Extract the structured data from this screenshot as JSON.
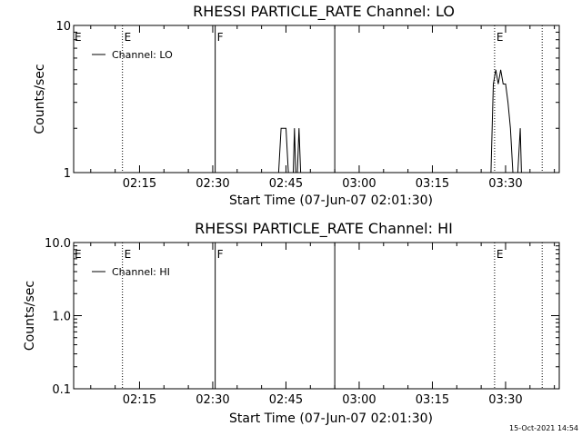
{
  "chart_data": [
    {
      "type": "line",
      "title": "RHESSI PARTICLE_RATE Channel: LO",
      "xlabel": "Start Time (07-Jun-07 02:01:30)",
      "ylabel": "Counts/sec",
      "yscale": "log",
      "ylim": [
        1,
        10
      ],
      "xlim": [
        "02:01:30",
        "03:41:00"
      ],
      "x_tick_labels": [
        "02:15",
        "02:30",
        "02:45",
        "03:00",
        "03:15",
        "03:30"
      ],
      "y_tick_labels": [
        "1",
        "10"
      ],
      "legend": {
        "entry": "Channel: LO",
        "position": "top-left"
      },
      "markers": [
        {
          "time": "02:11:30",
          "style": "dotted",
          "label": "E"
        },
        {
          "time": "02:30:30",
          "style": "solid",
          "label": "F"
        },
        {
          "time": "02:55:00",
          "style": "solid",
          "label": ""
        },
        {
          "time": "03:27:45",
          "style": "dotted",
          "label": "E"
        },
        {
          "time": "03:37:30",
          "style": "dotted",
          "label": ""
        }
      ],
      "series": [
        {
          "name": "Channel: LO",
          "x": [
            "02:43:30",
            "02:44:00",
            "02:44:30",
            "02:45:00",
            "02:45:30",
            "02:45:45",
            "02:46:15",
            "02:46:30",
            "02:46:45",
            "02:47:00",
            "02:47:20",
            "02:47:40",
            "02:48:00",
            "02:48:15",
            "02:48:30",
            "02:48:45",
            "02:49:00",
            "02:49:20",
            "03:27:00",
            "03:27:30",
            "03:28:00",
            "03:28:30",
            "03:29:00",
            "03:29:30",
            "03:30:00",
            "03:30:30",
            "03:31:00",
            "03:31:30",
            "03:32:00",
            "03:32:15",
            "03:32:30",
            "03:33:00",
            "03:33:15"
          ],
          "y": [
            1,
            2,
            2,
            2,
            1,
            1,
            1,
            1,
            2,
            1,
            1,
            2,
            1,
            1,
            1,
            1,
            1,
            1,
            1,
            4,
            5,
            4,
            5,
            4,
            4,
            3,
            2,
            1,
            1,
            1,
            1,
            2,
            1
          ]
        }
      ]
    },
    {
      "type": "line",
      "title": "RHESSI PARTICLE_RATE Channel: HI",
      "xlabel": "Start Time (07-Jun-07 02:01:30)",
      "ylabel": "Counts/sec",
      "yscale": "log",
      "ylim": [
        0.1,
        10
      ],
      "xlim": [
        "02:01:30",
        "03:41:00"
      ],
      "x_tick_labels": [
        "02:15",
        "02:30",
        "02:45",
        "03:00",
        "03:15",
        "03:30"
      ],
      "y_tick_labels": [
        "0.1",
        "1.0",
        "10.0"
      ],
      "legend": {
        "entry": "Channel: HI",
        "position": "top-left"
      },
      "markers": [
        {
          "time": "02:11:30",
          "style": "dotted",
          "label": "E"
        },
        {
          "time": "02:30:30",
          "style": "solid",
          "label": "F"
        },
        {
          "time": "02:55:00",
          "style": "solid",
          "label": ""
        },
        {
          "time": "03:27:45",
          "style": "dotted",
          "label": "E"
        },
        {
          "time": "03:37:30",
          "style": "dotted",
          "label": ""
        }
      ],
      "series": [
        {
          "name": "Channel: HI",
          "x": [],
          "y": []
        }
      ]
    }
  ],
  "footer": {
    "timestamp": "15-Oct-2021 14:54"
  },
  "colors": {
    "background": "#ffffff",
    "foreground": "#000000"
  }
}
